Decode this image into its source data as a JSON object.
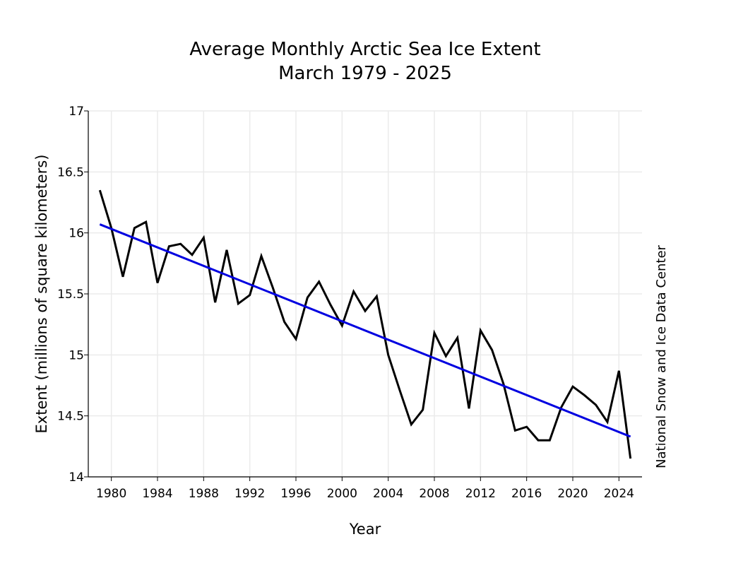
{
  "chart_data": {
    "type": "line",
    "title": "Average Monthly Arctic Sea Ice Extent",
    "subtitle": "March 1979 - 2025",
    "xlabel": "Year",
    "ylabel": "Extent (millions of square kilometers)",
    "credit": "National Snow and Ice Data Center",
    "xlim": [
      1978,
      2026
    ],
    "ylim": [
      14,
      17
    ],
    "xticks": [
      1980,
      1984,
      1988,
      1992,
      1996,
      2000,
      2004,
      2008,
      2012,
      2016,
      2020,
      2024
    ],
    "yticks": [
      {
        "v": 14,
        "label": "14"
      },
      {
        "v": 14.5,
        "label": "14.5"
      },
      {
        "v": 15,
        "label": "15"
      },
      {
        "v": 15.5,
        "label": "15.5"
      },
      {
        "v": 16,
        "label": "16"
      },
      {
        "v": 16.5,
        "label": "16.5"
      },
      {
        "v": 17,
        "label": "17"
      }
    ],
    "grid": true,
    "series": [
      {
        "color": "#000000",
        "x": [
          1979,
          1980,
          1981,
          1982,
          1983,
          1984,
          1985,
          1986,
          1987,
          1988,
          1989,
          1990,
          1991,
          1992,
          1993,
          1994,
          1995,
          1996,
          1997,
          1998,
          1999,
          2000,
          2001,
          2002,
          2003,
          2004,
          2005,
          2006,
          2007,
          2008,
          2009,
          2010,
          2011,
          2012,
          2013,
          2014,
          2015,
          2016,
          2017,
          2018,
          2019,
          2020,
          2021,
          2022,
          2023,
          2024,
          2025
        ],
        "values": [
          16.35,
          16.04,
          15.64,
          16.04,
          16.09,
          15.59,
          15.89,
          15.91,
          15.82,
          15.96,
          15.43,
          15.86,
          15.42,
          15.49,
          15.81,
          15.55,
          15.27,
          15.13,
          15.47,
          15.6,
          15.41,
          15.24,
          15.52,
          15.36,
          15.48,
          15.0,
          14.71,
          14.43,
          14.55,
          15.18,
          14.99,
          15.14,
          14.56,
          15.2,
          15.04,
          14.76,
          14.38,
          14.41,
          14.3,
          14.3,
          14.57,
          14.74,
          14.67,
          14.59,
          14.45,
          14.87,
          14.15
        ]
      },
      {
        "color": "#0000e0",
        "trend": true,
        "x": [
          1979,
          2025
        ],
        "values": [
          16.07,
          14.33
        ]
      }
    ]
  }
}
